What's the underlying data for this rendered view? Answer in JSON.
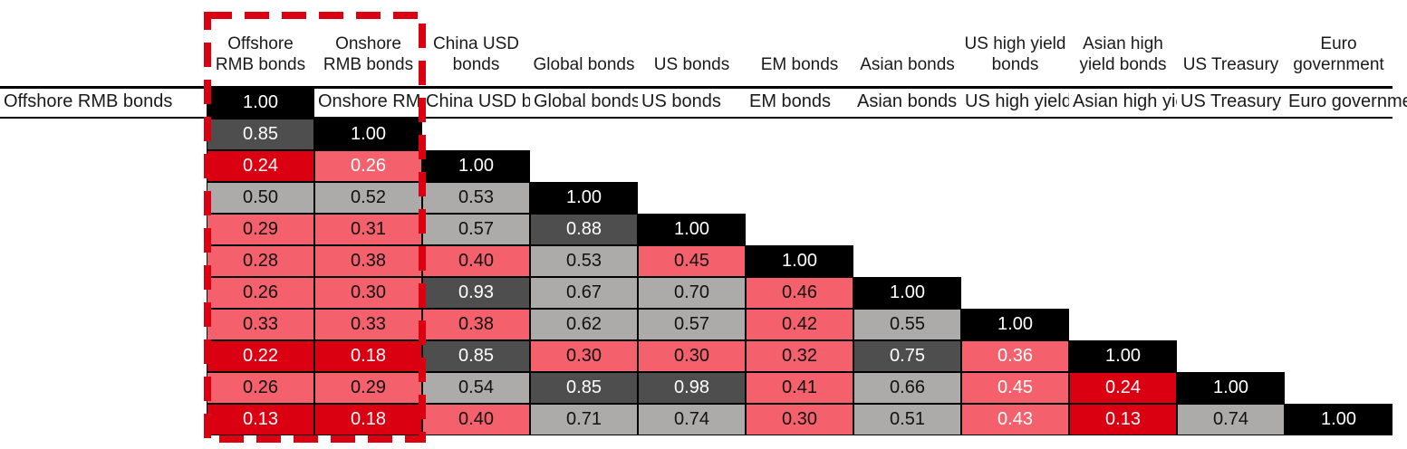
{
  "chart_data": {
    "type": "heatmap",
    "title": "",
    "description": "Lower-triangular correlation matrix of bond indices",
    "categories": [
      "Offshore RMB bonds",
      "Onshore RMB bonds",
      "China USD bonds",
      "Global bonds",
      "US bonds",
      "EM bonds",
      "Asian bonds",
      "US high yield bonds",
      "Asian high yield bonds",
      "US Treasury",
      "Euro government"
    ],
    "tiers": {
      "diag": {
        "bg": "#000000",
        "fg": "#ffffff"
      },
      "high": {
        "bg": "#4e4e4e",
        "fg": "#ffffff"
      },
      "mid": {
        "bg": "#adaba9",
        "fg": "#111111"
      },
      "low": {
        "bg": "#f4616c",
        "fg": "#111111"
      },
      "lowest": {
        "bg": "#db0011",
        "fg": "#ffffff"
      }
    },
    "rows": [
      {
        "label": "Offshore RMB bonds",
        "cells": [
          {
            "v": "1.00",
            "t": "diag"
          }
        ]
      },
      {
        "label": "Onshore RMB bonds",
        "cells": [
          {
            "v": "0.85",
            "t": "high"
          },
          {
            "v": "1.00",
            "t": "diag"
          }
        ]
      },
      {
        "label": "China USD bonds",
        "cells": [
          {
            "v": "0.24",
            "t": "lowest"
          },
          {
            "v": "0.26",
            "t": "low",
            "fg": "#ffffff"
          },
          {
            "v": "1.00",
            "t": "diag"
          }
        ]
      },
      {
        "label": "Global bonds",
        "cells": [
          {
            "v": "0.50",
            "t": "mid"
          },
          {
            "v": "0.52",
            "t": "mid"
          },
          {
            "v": "0.53",
            "t": "mid"
          },
          {
            "v": "1.00",
            "t": "diag"
          }
        ]
      },
      {
        "label": "US bonds",
        "cells": [
          {
            "v": "0.29",
            "t": "low"
          },
          {
            "v": "0.31",
            "t": "low"
          },
          {
            "v": "0.57",
            "t": "mid"
          },
          {
            "v": "0.88",
            "t": "high"
          },
          {
            "v": "1.00",
            "t": "diag"
          }
        ]
      },
      {
        "label": "EM bonds",
        "cells": [
          {
            "v": "0.28",
            "t": "low"
          },
          {
            "v": "0.38",
            "t": "low"
          },
          {
            "v": "0.40",
            "t": "low"
          },
          {
            "v": "0.53",
            "t": "mid"
          },
          {
            "v": "0.45",
            "t": "low"
          },
          {
            "v": "1.00",
            "t": "diag"
          }
        ]
      },
      {
        "label": "Asian bonds",
        "cells": [
          {
            "v": "0.26",
            "t": "low"
          },
          {
            "v": "0.30",
            "t": "low"
          },
          {
            "v": "0.93",
            "t": "high"
          },
          {
            "v": "0.67",
            "t": "mid"
          },
          {
            "v": "0.70",
            "t": "mid"
          },
          {
            "v": "0.46",
            "t": "low"
          },
          {
            "v": "1.00",
            "t": "diag"
          }
        ]
      },
      {
        "label": "US high yield bonds",
        "cells": [
          {
            "v": "0.33",
            "t": "low"
          },
          {
            "v": "0.33",
            "t": "low"
          },
          {
            "v": "0.38",
            "t": "low"
          },
          {
            "v": "0.62",
            "t": "mid"
          },
          {
            "v": "0.57",
            "t": "mid"
          },
          {
            "v": "0.42",
            "t": "low"
          },
          {
            "v": "0.55",
            "t": "mid"
          },
          {
            "v": "1.00",
            "t": "diag"
          }
        ]
      },
      {
        "label": "Asian high yield bonds",
        "cells": [
          {
            "v": "0.22",
            "t": "lowest"
          },
          {
            "v": "0.18",
            "t": "lowest"
          },
          {
            "v": "0.85",
            "t": "high"
          },
          {
            "v": "0.30",
            "t": "low"
          },
          {
            "v": "0.30",
            "t": "low"
          },
          {
            "v": "0.32",
            "t": "low"
          },
          {
            "v": "0.75",
            "t": "high"
          },
          {
            "v": "0.36",
            "t": "low",
            "fg": "#ffffff"
          },
          {
            "v": "1.00",
            "t": "diag"
          }
        ]
      },
      {
        "label": "US Treasury",
        "cells": [
          {
            "v": "0.26",
            "t": "low"
          },
          {
            "v": "0.29",
            "t": "low"
          },
          {
            "v": "0.54",
            "t": "mid"
          },
          {
            "v": "0.85",
            "t": "high"
          },
          {
            "v": "0.98",
            "t": "high"
          },
          {
            "v": "0.41",
            "t": "low"
          },
          {
            "v": "0.66",
            "t": "mid"
          },
          {
            "v": "0.45",
            "t": "low",
            "fg": "#ffffff"
          },
          {
            "v": "0.24",
            "t": "lowest"
          },
          {
            "v": "1.00",
            "t": "diag"
          }
        ]
      },
      {
        "label": "Euro government",
        "cells": [
          {
            "v": "0.13",
            "t": "lowest"
          },
          {
            "v": "0.18",
            "t": "lowest"
          },
          {
            "v": "0.40",
            "t": "low"
          },
          {
            "v": "0.71",
            "t": "mid"
          },
          {
            "v": "0.74",
            "t": "mid"
          },
          {
            "v": "0.30",
            "t": "low"
          },
          {
            "v": "0.51",
            "t": "mid"
          },
          {
            "v": "0.43",
            "t": "low",
            "fg": "#ffffff"
          },
          {
            "v": "0.13",
            "t": "lowest"
          },
          {
            "v": "0.74",
            "t": "mid"
          },
          {
            "v": "1.00",
            "t": "diag"
          }
        ]
      }
    ],
    "highlight": {
      "label": "highlighted-columns",
      "columns": [
        "Offshore RMB bonds",
        "Onshore RMB bonds"
      ],
      "color": "#db0011"
    },
    "legend_position": "none",
    "grid": "cell-borders"
  }
}
